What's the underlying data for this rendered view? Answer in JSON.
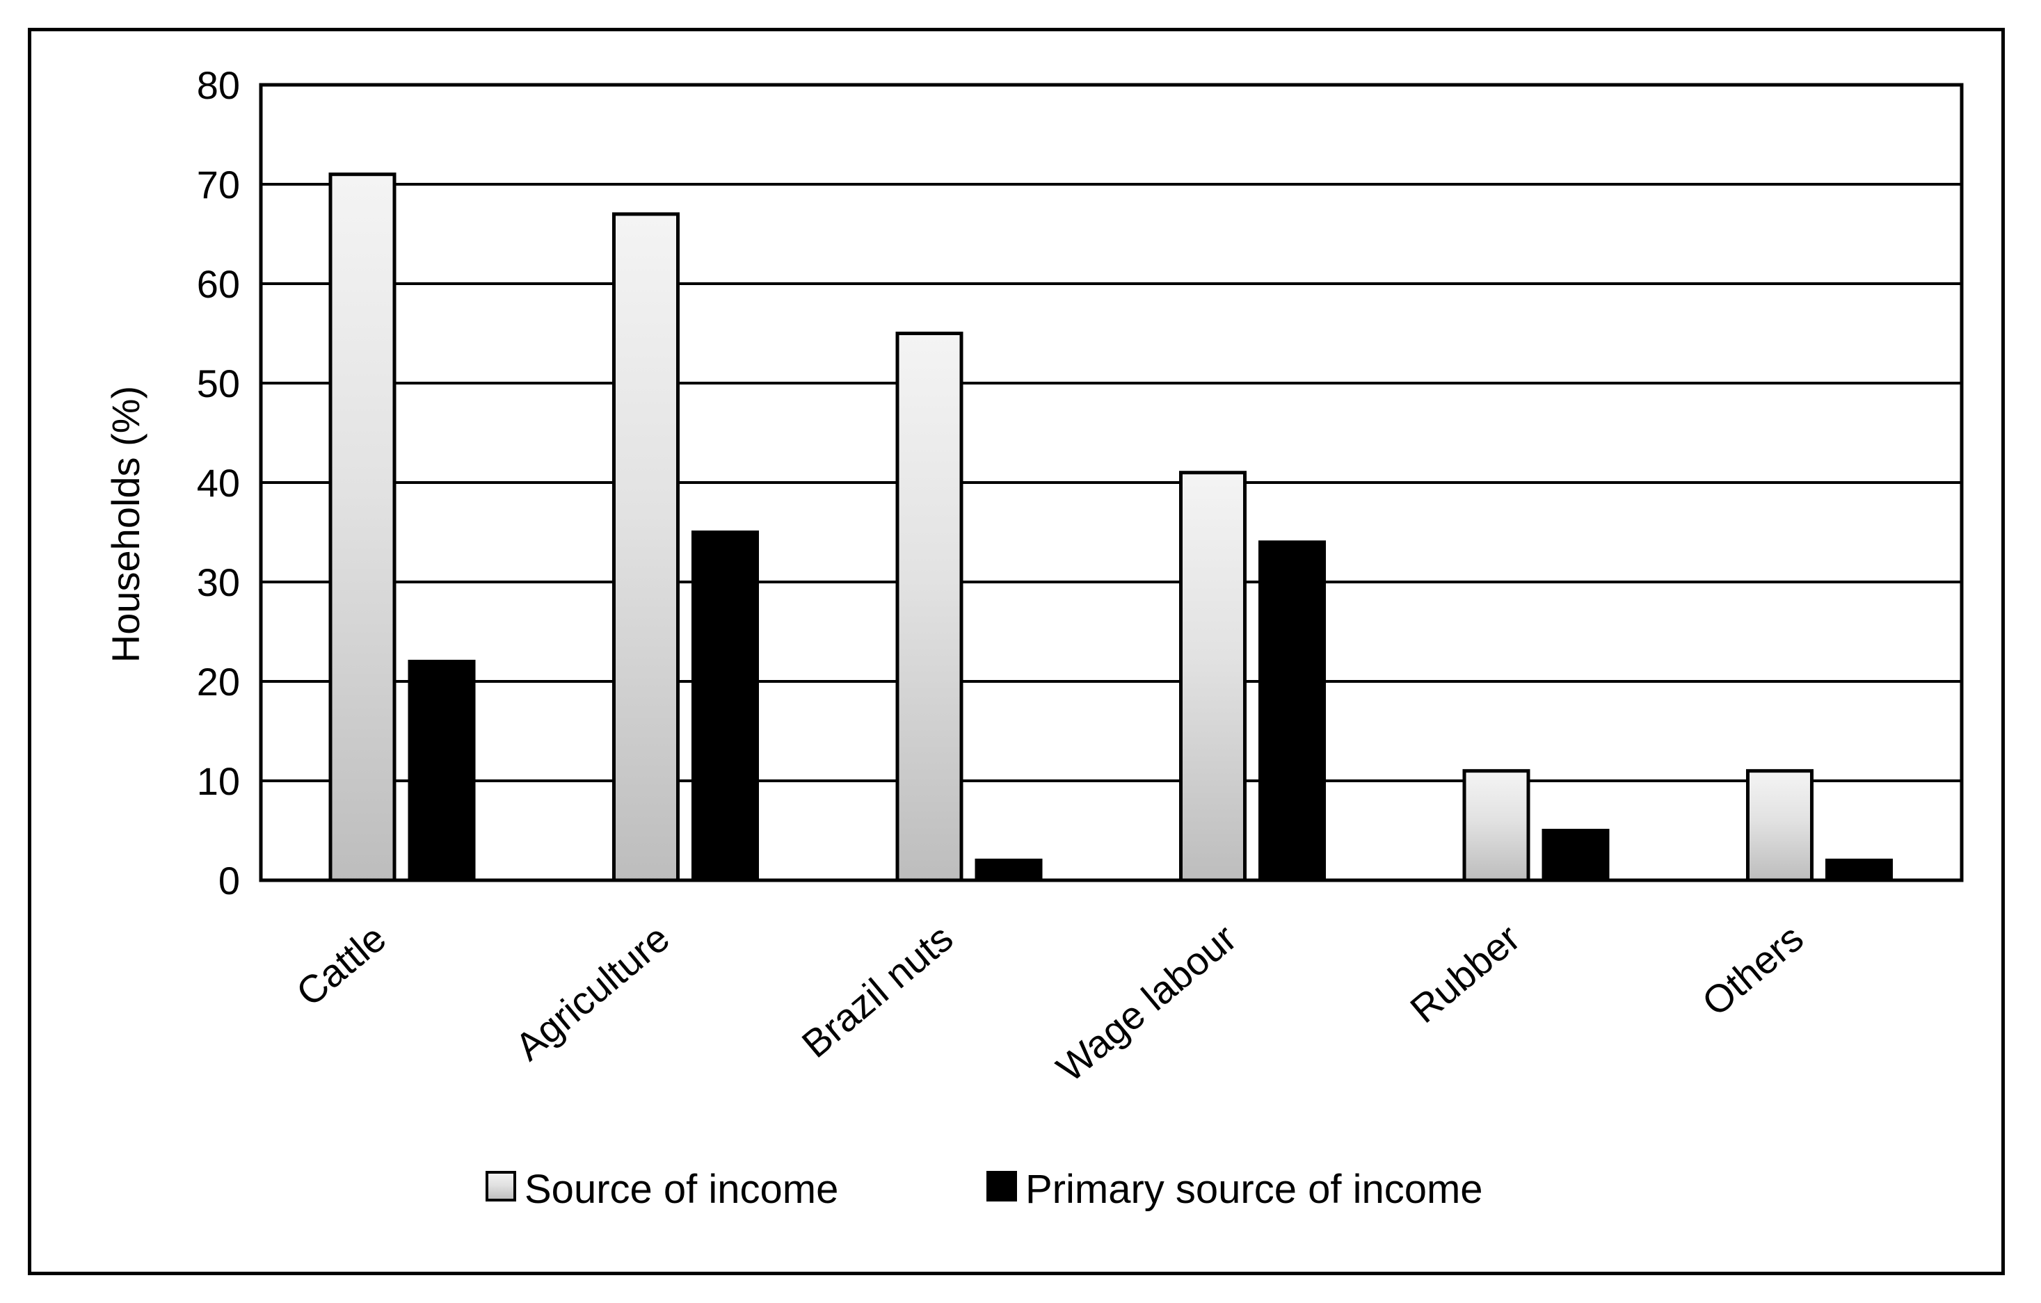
{
  "chart_data": {
    "type": "bar",
    "title": "",
    "xlabel": "",
    "ylabel": "Households (%)",
    "ylim": [
      0,
      80
    ],
    "yticks": [
      0,
      10,
      20,
      30,
      40,
      50,
      60,
      70,
      80
    ],
    "grid": true,
    "legend_position": "bottom",
    "categories": [
      "Cattle",
      "Agriculture",
      "Brazil nuts",
      "Wage labour",
      "Rubber",
      "Others"
    ],
    "series": [
      {
        "name": "Source of income",
        "color": "#d9d9d9",
        "values": [
          71,
          67,
          55,
          41,
          11,
          11
        ]
      },
      {
        "name": "Primary source of income",
        "color": "#000000",
        "values": [
          22,
          35,
          2,
          34,
          5,
          2
        ]
      }
    ]
  }
}
